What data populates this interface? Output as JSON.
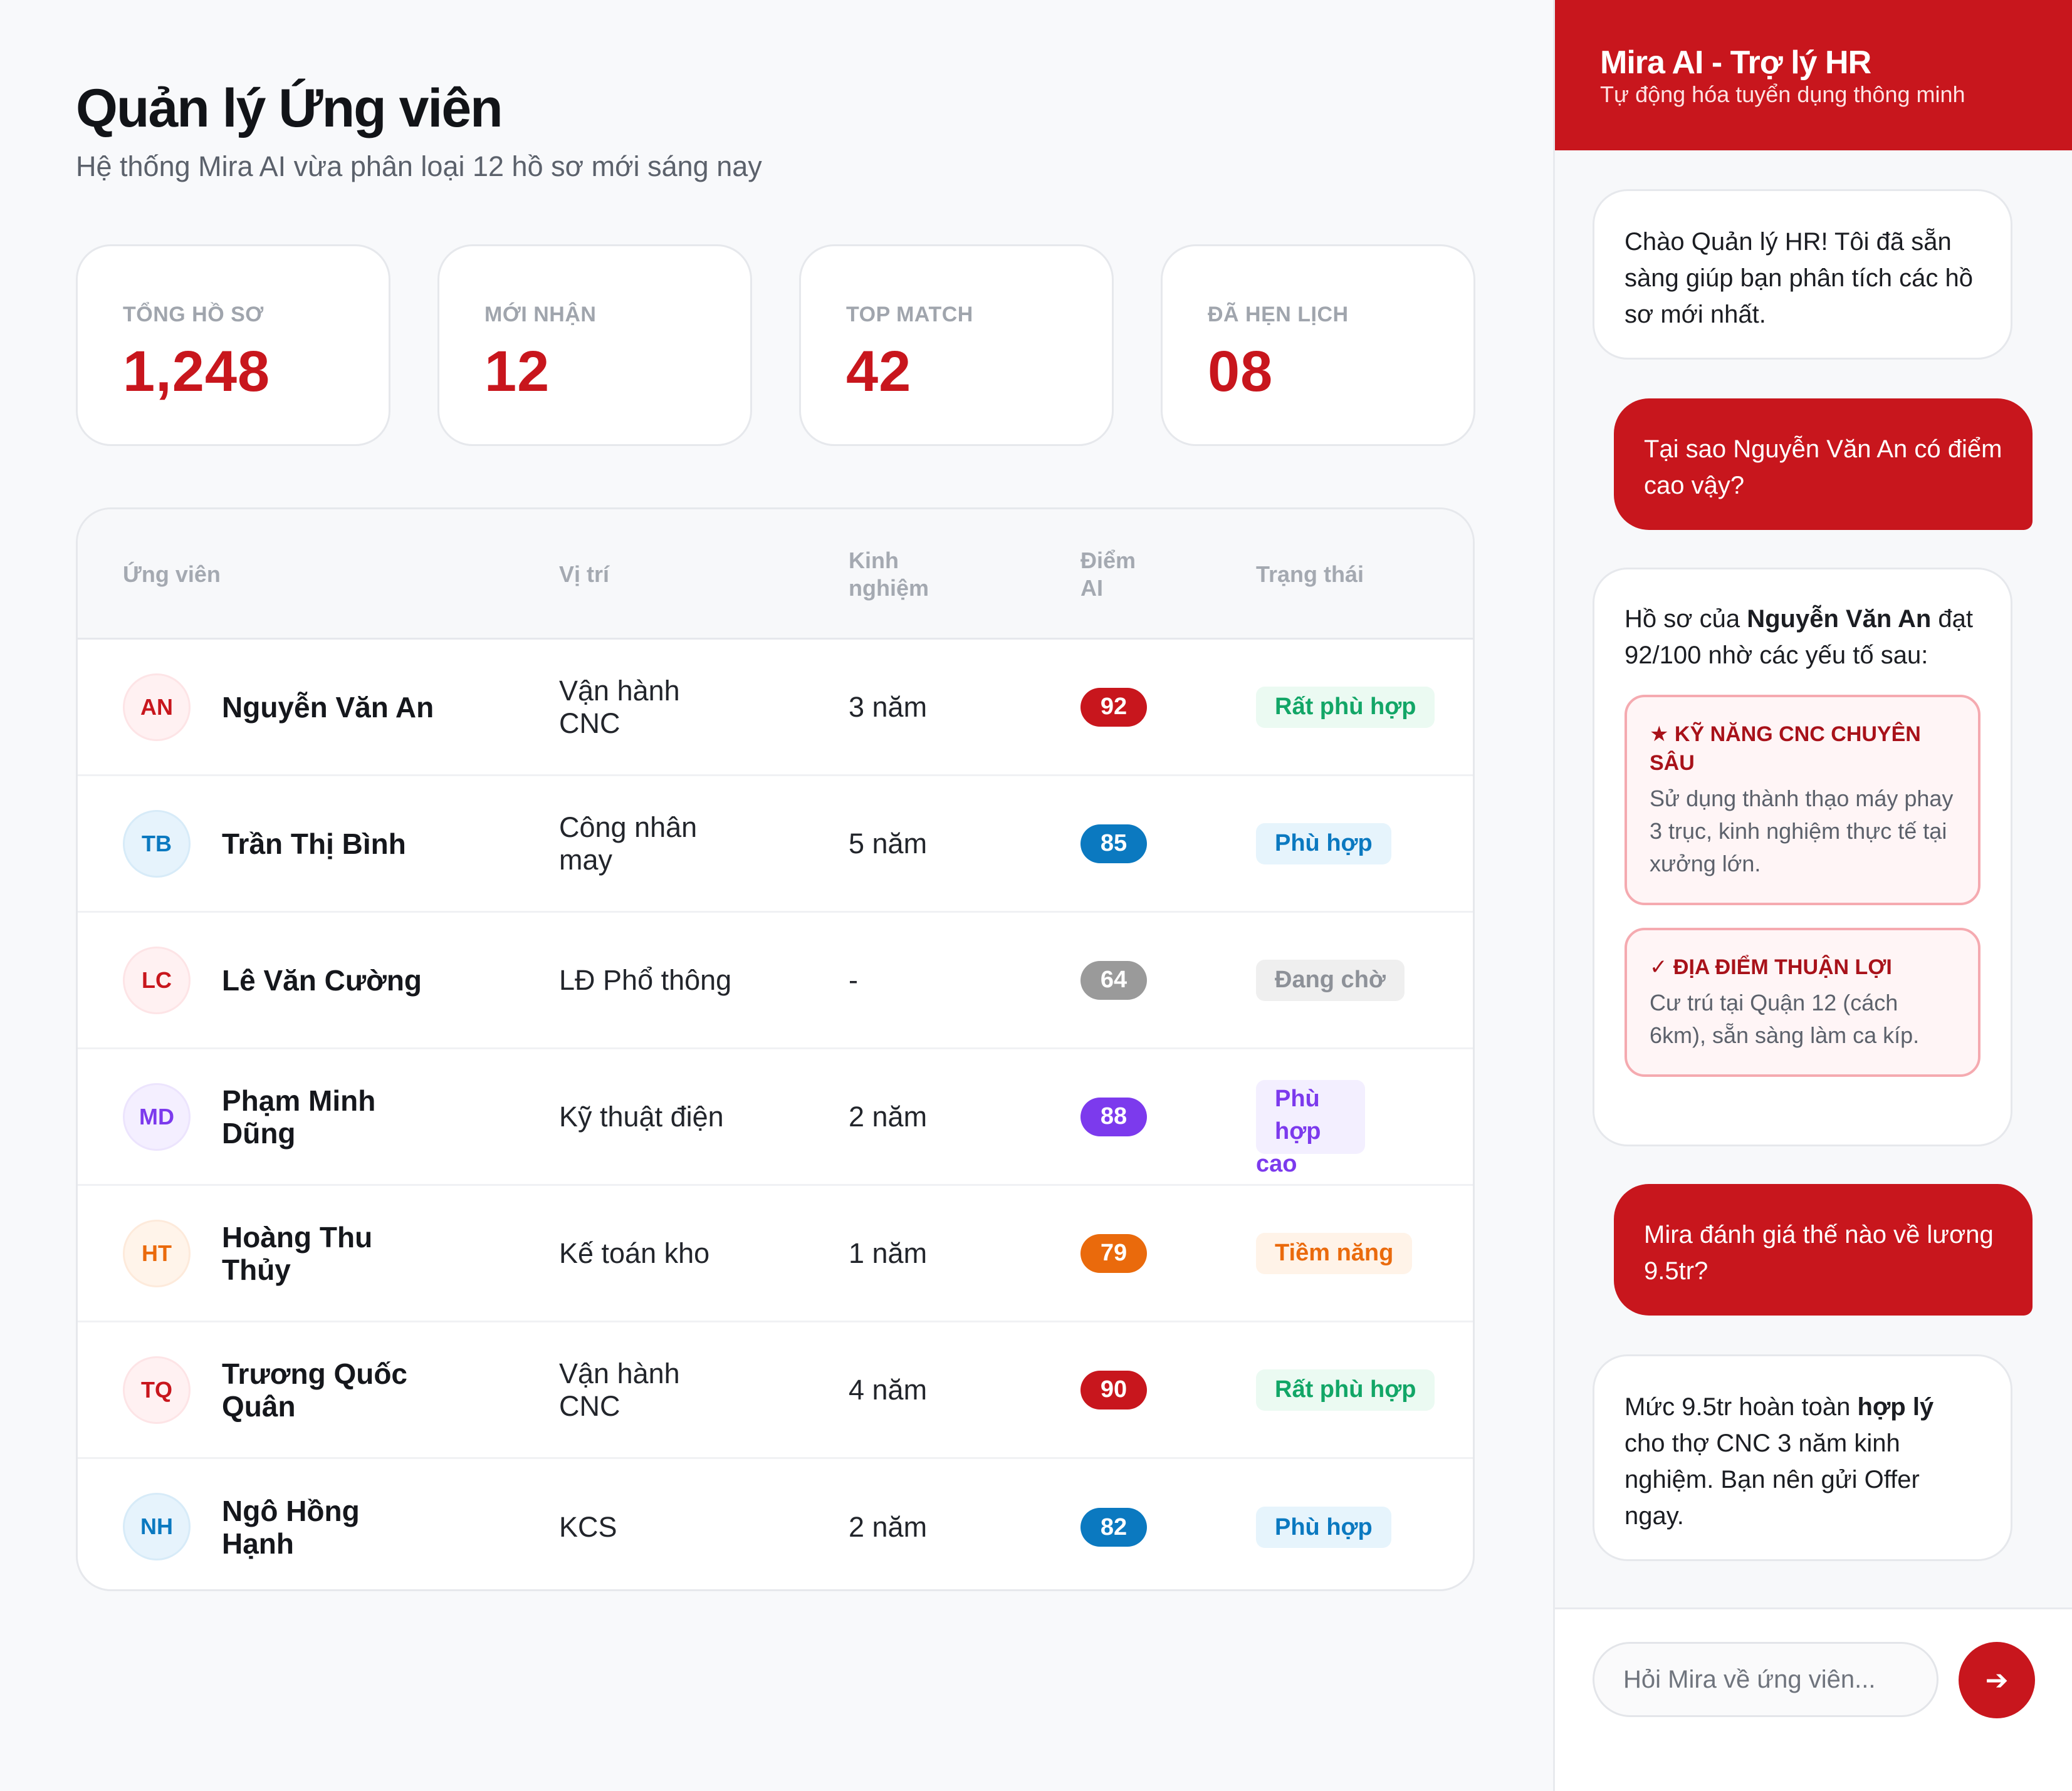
{
  "header": {
    "title": "Quản lý Ứng viên",
    "subtitle": "Hệ thống Mira AI vừa phân loại 12 hồ sơ mới sáng nay"
  },
  "stats": [
    {
      "label": "TỔNG HỒ SƠ",
      "value": "1,248"
    },
    {
      "label": "MỚI NHẬN",
      "value": "12"
    },
    {
      "label": "TOP MATCH",
      "value": "42"
    },
    {
      "label": "ĐÃ HẸN LỊCH",
      "value": "08"
    }
  ],
  "table": {
    "headers": {
      "candidate": "Ứng viên",
      "position": "Vị trí",
      "experience_1": "Kinh",
      "experience_2": "nghiệm",
      "score_1": "Điểm",
      "score_2": "AI",
      "status": "Trạng thái"
    },
    "rows": [
      {
        "initials": "AN",
        "name": "Nguyễn Văn An",
        "position": "Vận hành CNC",
        "experience": "3 năm",
        "score": "92",
        "status": "Rất phù hợp"
      },
      {
        "initials": "TB",
        "name": "Trần Thị Bình",
        "position": "Công nhân may",
        "experience": "5 năm",
        "score": "85",
        "status": "Phù hợp"
      },
      {
        "initials": "LC",
        "name": "Lê Văn Cường",
        "position": "LĐ Phổ thông",
        "experience": "-",
        "score": "64",
        "status": "Đang chờ"
      },
      {
        "initials": "MD",
        "name": "Phạm Minh Dũng",
        "position": "Kỹ thuật điện",
        "experience": "2 năm",
        "score": "88",
        "status_line1": "Phù hợp",
        "status_line2": "cao"
      },
      {
        "initials": "HT",
        "name": "Hoàng Thu Thủy",
        "position": "Kế toán kho",
        "experience": "1 năm",
        "score": "79",
        "status": "Tiềm năng"
      },
      {
        "initials": "TQ",
        "name": "Trương Quốc Quân",
        "position": "Vận hành CNC",
        "experience": "4 năm",
        "score": "90",
        "status": "Rất phù hợp"
      },
      {
        "initials": "NH",
        "name": "Ngô Hồng Hạnh",
        "position": "KCS",
        "experience": "2 năm",
        "score": "82",
        "status": "Phù hợp"
      }
    ]
  },
  "colors": {
    "brand": "#c8161d",
    "score_red": "#c8161d",
    "score_blue": "#0b79c0",
    "score_gray": "#9a9a9a",
    "score_purple": "#7c3aed",
    "score_orange": "#ea6a0c",
    "status_green": "#12a667",
    "status_blue": "#0b79c0",
    "status_gray": "#8d9198",
    "status_purple": "#7c3aed",
    "status_orange": "#ea6a0c"
  },
  "assistant": {
    "title": "Mira AI - Trợ lý HR",
    "subtitle": "Tự động hóa tuyển dụng thông minh",
    "messages": {
      "greeting": "Chào Quản lý HR! Tôi đã sẵn sàng giúp bạn phân tích các hồ sơ mới nhất.",
      "user_q1": "Tại sao Nguyễn Văn An có điểm cao vậy?",
      "ai_r1_prefix": "Hồ sơ của ",
      "ai_r1_name": "Nguyễn Văn An",
      "ai_r1_suffix": " đạt 92/100 nhờ các yếu tố sau:",
      "reason1_icon": "star-icon",
      "reason1_title": "★ KỸ NĂNG CNC CHUYÊN SÂU",
      "reason1_text": "Sử dụng thành thạo máy phay 3 trục, kinh nghiệm thực tế tại xưởng lớn.",
      "reason2_icon": "check-icon",
      "reason2_title": "✓ ĐỊA ĐIỂM THUẬN LỢI",
      "reason2_text": "Cư trú tại Quận 12 (cách 6km), sẵn sàng làm ca kíp.",
      "user_q2": "Mira đánh giá thế nào về lương 9.5tr?",
      "ai_r2_prefix": "Mức 9.5tr hoàn toàn ",
      "ai_r2_bold": "hợp lý",
      "ai_r2_suffix": " cho thợ CNC 3 năm kinh nghiệm. Bạn nên gửi Offer ngay."
    },
    "input_placeholder": "Hỏi Mira về ứng viên...",
    "send_icon": "arrow-right-icon",
    "send_glyph": "➔"
  }
}
